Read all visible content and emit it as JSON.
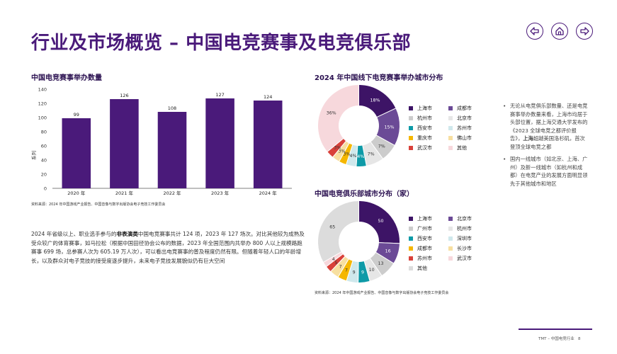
{
  "page": {
    "title": "行业及市场概览 – 中国电竞赛事及电竞俱乐部",
    "footer": "TMT – 中国电竞行业",
    "page_number": "8",
    "nav": {
      "back_icon": "arrow-left-icon",
      "home_icon": "home-icon",
      "forward_icon": "arrow-right-icon"
    }
  },
  "bar_section": {
    "title": "中国电竞赛事举办数量",
    "source": "资料来源：2024 年中国游戏产业报告、中国音像与数字出版协会电子竞技工作委员会"
  },
  "pie1_section": {
    "title": "2024 年中国线下电竞赛事举办城市分布"
  },
  "pie2_section": {
    "title": "中国电竞俱乐部城市分布（家）",
    "source": "资料来源：2024 年中国游戏产业报告、中国音像与数字出版协会电子竞技工作委员会"
  },
  "bullets": [
    {
      "before": "无论从电竞俱乐部数量、还是电竞赛事举办数量来看，上海市均居于头部位置，据上海交通大学发布的《2023 全球电竞之都评价报告》，",
      "bold": "上海",
      "after": "超越美国洛杉矶，首次登顶全球电竞之都"
    },
    {
      "before": "国内一线城市（如北京、上海、广州）及新一线城市（如杭州和成都）在电竞产业的发展方面明显领先于其他城市和地区",
      "bold": "",
      "after": ""
    }
  ],
  "paragraph": {
    "part1": "2024 年省级以上、职业选手参与的",
    "bold": "非表演类",
    "part2": "中国电竞赛事共计 124 项，2023 年 127 场次。对比其他较为成熟及受众较广的体育赛事，如马拉松（根据中国田径协会公布的数据，2023 年全国范围内共举办 800 人以上规模路跑赛事 699 场，总参赛人次为 605.19 万人次），可以看出电竞赛事的普及程度仍然有限。但随着年轻人口的年龄增长，以及群众对电子竞技的接受度逐步提升，未来电子竞技发展貌似仍有巨大空间"
  },
  "colors": {
    "purple": "#4a1a7a",
    "bar": "#4a1a7a"
  },
  "chart_data": [
    {
      "type": "bar",
      "categories": [
        "2020 年",
        "2021 年",
        "2022 年",
        "2023 年",
        "2024 年"
      ],
      "values": [
        99,
        126,
        108,
        127,
        124
      ],
      "ylabel": "系列",
      "ylim": [
        0,
        140
      ],
      "yticks": [
        0,
        20,
        40,
        60,
        80,
        100,
        120,
        140
      ],
      "grid": false
    },
    {
      "type": "pie",
      "donut": true,
      "categories": [
        "上海市",
        "成都市",
        "杭州市",
        "北京市",
        "西安市",
        "苏州市",
        "重庆市",
        "佛山市",
        "武汉市",
        "其他"
      ],
      "values": [
        18,
        15,
        7,
        7,
        4,
        4,
        3,
        3,
        3,
        36
      ],
      "labels": [
        "18%",
        "15%",
        "7%",
        "7%",
        "4%",
        "4%",
        "3%",
        "3%",
        "3%",
        "36%"
      ],
      "colors": [
        "#3d1466",
        "#6b4a96",
        "#cccccc",
        "#e6e6e6",
        "#0e9aa7",
        "#cfe8ec",
        "#f5b700",
        "#f7dfa0",
        "#d9413a",
        "#f7d8dc"
      ],
      "legend": "right"
    },
    {
      "type": "pie",
      "donut": true,
      "categories": [
        "上海市",
        "北京市",
        "广州市",
        "杭州市",
        "西安市",
        "深圳市",
        "成都市",
        "长沙市",
        "苏州市",
        "武汉市",
        "其他"
      ],
      "values": [
        50,
        16,
        13,
        10,
        9,
        9,
        7,
        7,
        5,
        4,
        65
      ],
      "labels": [
        "50",
        "16",
        "13",
        "10",
        "9",
        "9",
        "7",
        "7",
        "5",
        "4",
        "65"
      ],
      "colors": [
        "#3d1466",
        "#6b4a96",
        "#cccccc",
        "#e6e6e6",
        "#0e9aa7",
        "#cfe8ec",
        "#f5b700",
        "#f7dfa0",
        "#d9413a",
        "#f7d8dc",
        "#dcdcdc"
      ],
      "legend": "right"
    }
  ]
}
